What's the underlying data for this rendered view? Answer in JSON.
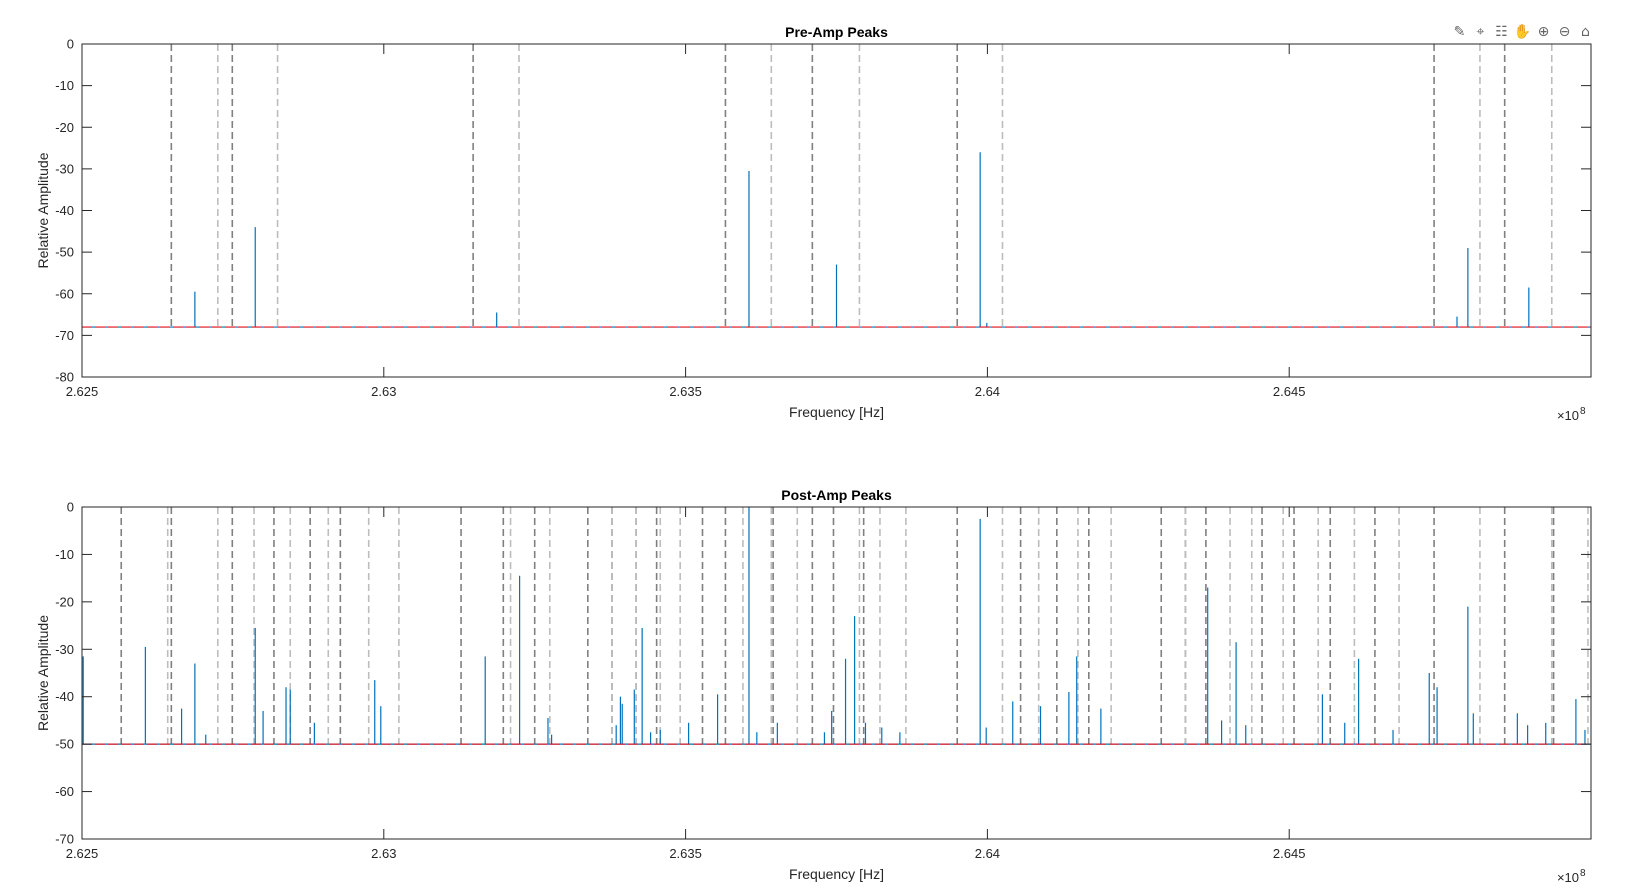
{
  "toolbar": {
    "icons": [
      "brush-icon",
      "datatip-icon",
      "legend-icon",
      "pan-icon",
      "zoom-in-icon",
      "zoom-out-icon",
      "home-icon"
    ]
  },
  "colors": {
    "signal": "#0072BD",
    "threshold": "#FF0000",
    "dash_dark": "#808080",
    "dash_light": "#BDBDBD",
    "axis": "#262626"
  },
  "chart_data": [
    {
      "type": "line",
      "title": "Pre-Amp Peaks",
      "xlabel": "Frequency [Hz]",
      "ylabel": "Relative Amplitude",
      "x_exponent_label": "×10",
      "x_exponent_power": "8",
      "xlim": [
        2.625,
        2.65
      ],
      "ylim": [
        -80,
        0
      ],
      "xticks": [
        2.625,
        2.63,
        2.635,
        2.64,
        2.645
      ],
      "xtick_labels": [
        "2.625",
        "2.63",
        "2.635",
        "2.64",
        "2.645"
      ],
      "yticks": [
        0,
        -10,
        -20,
        -30,
        -40,
        -50,
        -60,
        -70,
        -80
      ],
      "ytick_labels": [
        "0",
        "-10",
        "-20",
        "-30",
        "-40",
        "-50",
        "-60",
        "-70",
        "-80"
      ],
      "grid": false,
      "threshold": -68,
      "peaks": [
        {
          "x": 2.62687,
          "y": -59.5
        },
        {
          "x": 2.62787,
          "y": -44
        },
        {
          "x": 2.63187,
          "y": -64.5
        },
        {
          "x": 2.63605,
          "y": -30.5
        },
        {
          "x": 2.6375,
          "y": -53
        },
        {
          "x": 2.63988,
          "y": -26
        },
        {
          "x": 2.63999,
          "y": -67
        },
        {
          "x": 2.64778,
          "y": -65.5
        },
        {
          "x": 2.64796,
          "y": -49
        },
        {
          "x": 2.64897,
          "y": -58.5
        }
      ],
      "dashed_dark": [
        2.62648,
        2.62749,
        2.63148,
        2.63566,
        2.6371,
        2.6395,
        2.6474,
        2.64857
      ],
      "dashed_light": [
        2.62725,
        2.62824,
        2.63224,
        2.63642,
        2.63788,
        2.64025,
        2.64816,
        2.64935
      ]
    },
    {
      "type": "line",
      "title": "Post-Amp Peaks",
      "xlabel": "Frequency [Hz]",
      "ylabel": "Relative Amplitude",
      "x_exponent_label": "×10",
      "x_exponent_power": "8",
      "xlim": [
        2.625,
        2.65
      ],
      "ylim": [
        -70,
        0
      ],
      "xticks": [
        2.625,
        2.63,
        2.635,
        2.64,
        2.645
      ],
      "xtick_labels": [
        "2.625",
        "2.63",
        "2.635",
        "2.64",
        "2.645"
      ],
      "yticks": [
        0,
        -10,
        -20,
        -30,
        -40,
        -50,
        -60,
        -70
      ],
      "ytick_labels": [
        "0",
        "-10",
        "-20",
        "-30",
        "-40",
        "-50",
        "-60",
        "-70"
      ],
      "grid": false,
      "threshold": -50,
      "peaks": [
        {
          "x": 2.62502,
          "y": -31.5
        },
        {
          "x": 2.62605,
          "y": -29.5
        },
        {
          "x": 2.62665,
          "y": -42.5
        },
        {
          "x": 2.62687,
          "y": -33
        },
        {
          "x": 2.62705,
          "y": -48
        },
        {
          "x": 2.62787,
          "y": -25.5
        },
        {
          "x": 2.628,
          "y": -43
        },
        {
          "x": 2.62838,
          "y": -38
        },
        {
          "x": 2.62845,
          "y": -38.5
        },
        {
          "x": 2.62885,
          "y": -45.5
        },
        {
          "x": 2.62985,
          "y": -36.5
        },
        {
          "x": 2.62995,
          "y": -42
        },
        {
          "x": 2.63168,
          "y": -31.5
        },
        {
          "x": 2.63225,
          "y": -14.5
        },
        {
          "x": 2.63272,
          "y": -44.5
        },
        {
          "x": 2.63278,
          "y": -48
        },
        {
          "x": 2.63385,
          "y": -46
        },
        {
          "x": 2.63392,
          "y": -40
        },
        {
          "x": 2.63395,
          "y": -41.5
        },
        {
          "x": 2.63415,
          "y": -38.5
        },
        {
          "x": 2.63428,
          "y": -25.5
        },
        {
          "x": 2.63442,
          "y": -47.5
        },
        {
          "x": 2.63458,
          "y": -47
        },
        {
          "x": 2.63505,
          "y": -45.5
        },
        {
          "x": 2.63553,
          "y": -39.5
        },
        {
          "x": 2.63605,
          "y": 0
        },
        {
          "x": 2.63618,
          "y": -47.5
        },
        {
          "x": 2.63652,
          "y": -45.5
        },
        {
          "x": 2.6373,
          "y": -47.5
        },
        {
          "x": 2.63742,
          "y": -43
        },
        {
          "x": 2.63765,
          "y": -32
        },
        {
          "x": 2.6378,
          "y": -23
        },
        {
          "x": 2.63798,
          "y": -45.5
        },
        {
          "x": 2.63825,
          "y": -46.5
        },
        {
          "x": 2.63855,
          "y": -47.5
        },
        {
          "x": 2.63988,
          "y": -2.5
        },
        {
          "x": 2.63998,
          "y": -46.5
        },
        {
          "x": 2.64042,
          "y": -41
        },
        {
          "x": 2.64088,
          "y": -42
        },
        {
          "x": 2.64135,
          "y": -39
        },
        {
          "x": 2.64148,
          "y": -31.5
        },
        {
          "x": 2.64188,
          "y": -42.5
        },
        {
          "x": 2.64365,
          "y": -17
        },
        {
          "x": 2.64388,
          "y": -45
        },
        {
          "x": 2.64412,
          "y": -28.5
        },
        {
          "x": 2.64428,
          "y": -46
        },
        {
          "x": 2.64555,
          "y": -39.5
        },
        {
          "x": 2.64592,
          "y": -45.5
        },
        {
          "x": 2.64615,
          "y": -32
        },
        {
          "x": 2.64672,
          "y": -47
        },
        {
          "x": 2.64732,
          "y": -35
        },
        {
          "x": 2.64745,
          "y": -38
        },
        {
          "x": 2.64796,
          "y": -21
        },
        {
          "x": 2.64805,
          "y": -43.5
        },
        {
          "x": 2.64878,
          "y": -43.5
        },
        {
          "x": 2.64895,
          "y": -46
        },
        {
          "x": 2.64925,
          "y": -45.5
        },
        {
          "x": 2.64975,
          "y": -40.5
        },
        {
          "x": 2.6499,
          "y": -47
        }
      ],
      "dashed_dark": [
        2.62565,
        2.62648,
        2.62749,
        2.62818,
        2.62878,
        2.62928,
        2.63128,
        2.63198,
        2.6325,
        2.63338,
        2.63378,
        2.63418,
        2.63452,
        2.63528,
        2.63566,
        2.63645,
        2.6371,
        2.63745,
        2.63795,
        2.6395,
        2.64055,
        2.64115,
        2.64168,
        2.64288,
        2.64328,
        2.64362,
        2.64455,
        2.64508,
        2.64568,
        2.64642,
        2.6474,
        2.64857,
        2.64938
      ],
      "dashed_light": [
        2.62642,
        2.62725,
        2.62785,
        2.62845,
        2.62908,
        2.62975,
        2.63025,
        2.6321,
        2.63275,
        2.63378,
        2.63418,
        2.63458,
        2.63491,
        2.63595,
        2.63642,
        2.63685,
        2.63788,
        2.63822,
        2.63865,
        2.64025,
        2.64085,
        2.6415,
        2.64205,
        2.64328,
        2.64402,
        2.64438,
        2.6449,
        2.64548,
        2.64608,
        2.64682,
        2.64816,
        2.64935,
        2.64995
      ]
    }
  ]
}
